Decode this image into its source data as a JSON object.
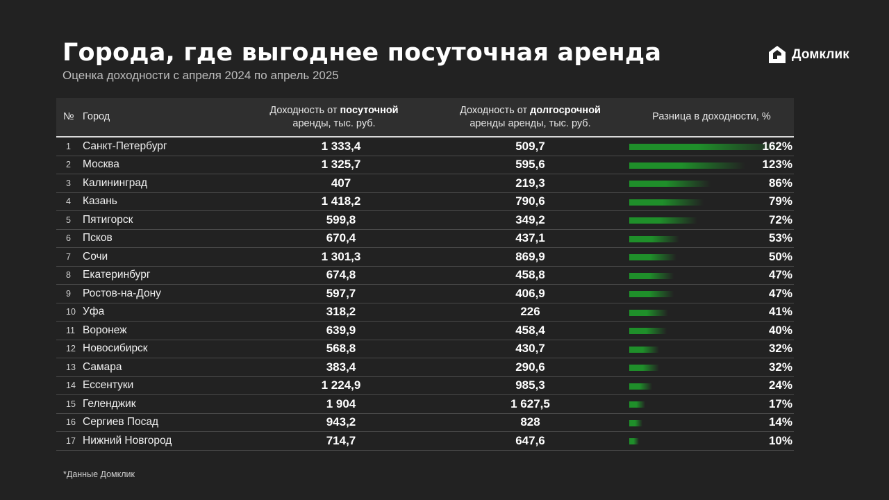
{
  "header": {
    "title": "Города, где выгоднее посуточная аренда",
    "subtitle": "Оценка доходности с апреля 2024 по апрель 2025",
    "logo_text": "Домклик"
  },
  "table": {
    "columns": {
      "num": "№",
      "city": "Город",
      "daily_pre": "Доходность от ",
      "daily_bold": "посуточной",
      "daily_post": "аренды, тыс. руб.",
      "long_pre": "Доходность от ",
      "long_bold": "долгосрочной",
      "long_post": "аренды аренды, тыс. руб.",
      "diff": "Разница в доходности, %"
    },
    "rows": [
      {
        "num": "1",
        "city": "Санкт-Петербург",
        "daily": "1 333,4",
        "long": "509,7",
        "diff": "162%"
      },
      {
        "num": "2",
        "city": "Москва",
        "daily": "1 325,7",
        "long": "595,6",
        "diff": "123%"
      },
      {
        "num": "3",
        "city": "Калининград",
        "daily": "407",
        "long": "219,3",
        "diff": "86%"
      },
      {
        "num": "4",
        "city": "Казань",
        "daily": "1 418,2",
        "long": "790,6",
        "diff": "79%"
      },
      {
        "num": "5",
        "city": "Пятигорск",
        "daily": "599,8",
        "long": "349,2",
        "diff": "72%"
      },
      {
        "num": "6",
        "city": "Псков",
        "daily": "670,4",
        "long": "437,1",
        "diff": "53%"
      },
      {
        "num": "7",
        "city": "Сочи",
        "daily": "1 301,3",
        "long": "869,9",
        "diff": "50%"
      },
      {
        "num": "8",
        "city": "Екатеринбург",
        "daily": "674,8",
        "long": "458,8",
        "diff": "47%"
      },
      {
        "num": "9",
        "city": "Ростов-на-Дону",
        "daily": "597,7",
        "long": "406,9",
        "diff": "47%"
      },
      {
        "num": "10",
        "city": "Уфа",
        "daily": "318,2",
        "long": "226",
        "diff": "41%"
      },
      {
        "num": "11",
        "city": "Воронеж",
        "daily": "639,9",
        "long": "458,4",
        "diff": "40%"
      },
      {
        "num": "12",
        "city": "Новосибирск",
        "daily": "568,8",
        "long": "430,7",
        "diff": "32%"
      },
      {
        "num": "13",
        "city": "Самара",
        "daily": "383,4",
        "long": "290,6",
        "diff": "32%"
      },
      {
        "num": "14",
        "city": "Ессентуки",
        "daily": "1 224,9",
        "long": "985,3",
        "diff": "24%"
      },
      {
        "num": "15",
        "city": "Геленджик",
        "daily": "1 904",
        "long": "1 627,5",
        "diff": "17%"
      },
      {
        "num": "16",
        "city": "Сергиев Посад",
        "daily": "943,2",
        "long": "828",
        "diff": "14%"
      },
      {
        "num": "17",
        "city": "Нижний Новгород",
        "daily": "714,7",
        "long": "647,6",
        "diff": "10%"
      }
    ]
  },
  "chart_data": {
    "type": "table",
    "title": "Города, где выгоднее посуточная аренда",
    "subtitle": "Оценка доходности с апреля 2024 по апрель 2025",
    "categories": [
      "Санкт-Петербург",
      "Москва",
      "Калининград",
      "Казань",
      "Пятигорск",
      "Псков",
      "Сочи",
      "Екатеринбург",
      "Ростов-на-Дону",
      "Уфа",
      "Воронеж",
      "Новосибирск",
      "Самара",
      "Ессентуки",
      "Геленджик",
      "Сергиев Посад",
      "Нижний Новгород"
    ],
    "series": [
      {
        "values": [
          1333.4,
          1325.7,
          407,
          1418.2,
          599.8,
          670.4,
          1301.3,
          674.8,
          597.7,
          318.2,
          639.9,
          568.8,
          383.4,
          1224.9,
          1904,
          943.2,
          714.7
        ]
      },
      {
        "values": [
          509.7,
          595.6,
          219.3,
          790.6,
          349.2,
          437.1,
          869.9,
          458.8,
          406.9,
          226,
          458.4,
          430.7,
          290.6,
          985.3,
          1627.5,
          828,
          647.6
        ]
      },
      {
        "values": [
          162,
          123,
          86,
          79,
          72,
          53,
          50,
          47,
          47,
          41,
          40,
          32,
          32,
          24,
          17,
          14,
          10
        ]
      }
    ],
    "bar_color": "#1f8f2a"
  },
  "footnote": "*Данные Домклик"
}
